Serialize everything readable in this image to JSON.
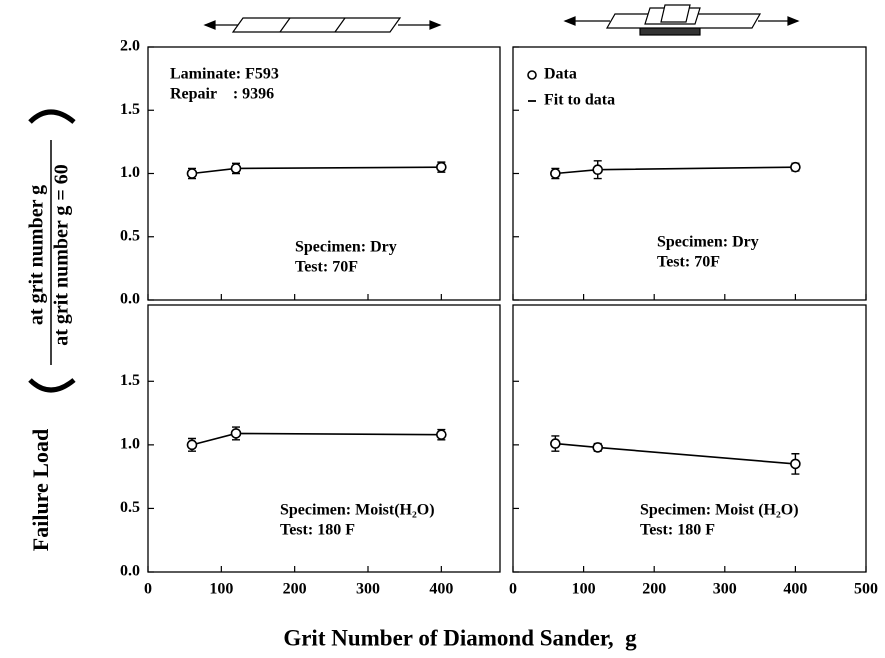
{
  "x_axis_label": "Grit Number of Diamond Sander,  g",
  "y_axis_label": {
    "main": "Failure Load",
    "numerator": "at grit number g",
    "denominator": "at grit number g = 60"
  },
  "chart_data": [
    {
      "type": "errorbar",
      "x": [
        60,
        120,
        400
      ],
      "values": [
        1.0,
        1.04,
        1.05
      ],
      "errors": [
        0.04,
        0.04,
        0.04
      ],
      "xlim": [
        0,
        480
      ],
      "ylim": [
        0,
        2
      ],
      "xticks": [
        0,
        100,
        200,
        300,
        400
      ],
      "yticks": [
        {
          "value": 0,
          "label": "0.0"
        },
        {
          "value": 0.5,
          "label": "0.5"
        },
        {
          "value": 1,
          "label": "1.0"
        },
        {
          "value": 1.5,
          "label": "1.5"
        },
        {
          "value": 2,
          "label": "2.0"
        }
      ],
      "xticklabels": false,
      "yticklabels": true,
      "annotations": [
        [
          "Laminate: F593",
          "Repair    : 9396"
        ],
        [
          "Specimen: Dry",
          "Test: 70F"
        ]
      ]
    },
    {
      "type": "errorbar",
      "x": [
        60,
        120,
        400
      ],
      "values": [
        1.0,
        1.03,
        1.05
      ],
      "errors": [
        0.04,
        0.07,
        0.03
      ],
      "xlim": [
        0,
        500
      ],
      "ylim": [
        0,
        2
      ],
      "xticks": [
        0,
        100,
        200,
        300,
        400,
        500
      ],
      "yticks": [
        0,
        0.5,
        1,
        1.5,
        2
      ],
      "xticklabels": false,
      "yticklabels": false,
      "legend": [
        "Data",
        "Fit to data"
      ],
      "annotations": [
        [
          "Specimen: Dry",
          "Test: 70F"
        ]
      ]
    },
    {
      "type": "errorbar",
      "x": [
        60,
        120,
        400
      ],
      "values": [
        1.0,
        1.09,
        1.08
      ],
      "errors": [
        0.05,
        0.05,
        0.04
      ],
      "xlim": [
        0,
        480
      ],
      "ylim": [
        0,
        2.1
      ],
      "xticks": [
        0,
        100,
        200,
        300,
        400
      ],
      "yticks": [
        {
          "value": 0,
          "label": "0.0"
        },
        {
          "value": 0.5,
          "label": "0.5"
        },
        {
          "value": 1,
          "label": "1.0"
        },
        {
          "value": 1.5,
          "label": "1.5"
        }
      ],
      "xticklabels": true,
      "yticklabels": true,
      "annotations": [
        [
          "Specimen: Moist(H₂O)",
          "Test: 180 F"
        ]
      ]
    },
    {
      "type": "errorbar",
      "x": [
        60,
        120,
        400
      ],
      "values": [
        1.01,
        0.98,
        0.85
      ],
      "errors": [
        0.06,
        0.03,
        0.08
      ],
      "xlim": [
        0,
        500
      ],
      "ylim": [
        0,
        2.1
      ],
      "xticks": [
        0,
        100,
        200,
        300,
        400,
        500
      ],
      "yticks": [
        0,
        0.5,
        1,
        1.5
      ],
      "xticklabels": true,
      "yticklabels": false,
      "annotations": [
        [
          "Specimen: Moist (H₂O)",
          "Test: 180 F"
        ]
      ]
    }
  ]
}
